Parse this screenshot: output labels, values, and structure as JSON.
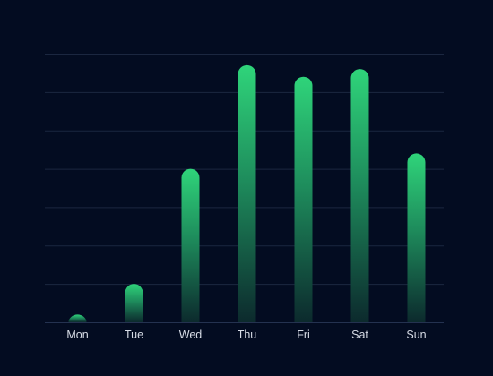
{
  "chart_data": {
    "type": "bar",
    "categories": [
      "Mon",
      "Tue",
      "Wed",
      "Thu",
      "Fri",
      "Sat",
      "Sun"
    ],
    "values": [
      0.2,
      1.0,
      4.0,
      6.7,
      6.4,
      6.6,
      4.4
    ],
    "ylim": [
      0,
      7
    ],
    "grid": true,
    "legend": "none",
    "title": "",
    "xlabel": "",
    "ylabel": "",
    "colors": {
      "background": "#030c21",
      "bar_top": "#2fd47a",
      "bar_bottom": "#0c2a2d",
      "grid": "#1b2740",
      "tick_label": "#d7dce6"
    }
  }
}
